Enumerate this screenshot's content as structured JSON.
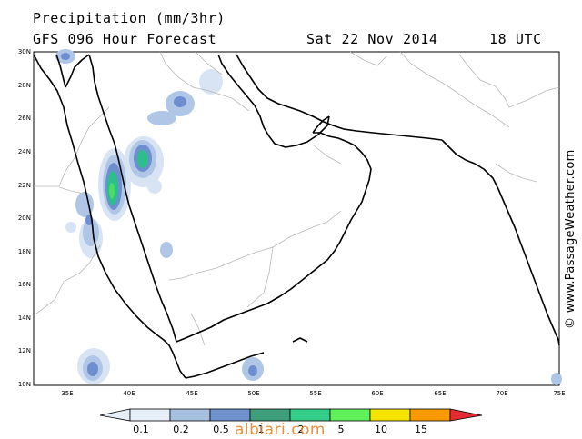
{
  "header": {
    "title": "Precipitation (mm/3hr)",
    "model": "GFS 096 Hour Forecast",
    "date": "Sat 22 Nov 2014",
    "time": "18 UTC"
  },
  "credit": "© www.PassageWeather.com",
  "watermark": "albiari.com",
  "axes": {
    "lat_labels": [
      "30N",
      "28N",
      "26N",
      "24N",
      "22N",
      "20N",
      "18N",
      "16N",
      "14N",
      "12N",
      "10N"
    ],
    "lon_labels": [
      "35E",
      "40E",
      "45E",
      "50E",
      "55E",
      "60E",
      "65E",
      "70E",
      "75E"
    ]
  },
  "legend": {
    "labels": [
      "0.1",
      "0.2",
      "0.5",
      "1",
      "2",
      "5",
      "10",
      "15"
    ],
    "colors": [
      "#e6eef8",
      "#a8c0e0",
      "#6f92cc",
      "#3f9f7d",
      "#35cd8a",
      "#60f05a",
      "#f6e400",
      "#f89a00",
      "#e62a34"
    ]
  },
  "map": {
    "precip_colors": {
      "trace": "#d8e4f4",
      "light": "#b0c6e6",
      "moderate": "#6d8fcf",
      "heavy": "#2cbf8a",
      "very_heavy": "#4cdc62"
    },
    "coast_color": "#000000",
    "border_color": "#b8b8b8"
  }
}
